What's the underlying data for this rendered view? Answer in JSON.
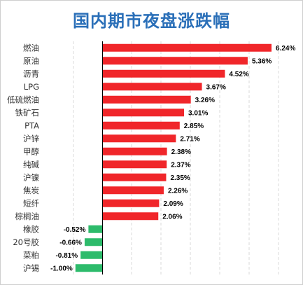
{
  "chart_data": {
    "type": "bar",
    "orientation": "horizontal",
    "title": "国内期市夜盘涨跌幅",
    "xlabel": "",
    "ylabel": "",
    "categories": [
      "燃油",
      "原油",
      "沥青",
      "LPG",
      "低硫燃油",
      "铁矿石",
      "PTA",
      "沪锌",
      "甲醇",
      "纯碱",
      "沪镍",
      "焦炭",
      "短纤",
      "棕榈油",
      "橡胶",
      "20号胶",
      "菜粕",
      "沪锡"
    ],
    "values": [
      6.24,
      5.36,
      4.52,
      3.67,
      3.26,
      3.01,
      2.85,
      2.71,
      2.38,
      2.37,
      2.35,
      2.26,
      2.09,
      2.06,
      -0.52,
      -0.66,
      -0.81,
      -1.0
    ],
    "value_labels": [
      "6.24%",
      "5.36%",
      "4.52%",
      "3.67%",
      "3.26%",
      "3.01%",
      "2.85%",
      "2.71%",
      "2.38%",
      "2.37%",
      "2.35%",
      "2.26%",
      "2.09%",
      "2.06%",
      "-0.52%",
      "-0.66%",
      "-0.81%",
      "-1.00%"
    ],
    "xlim": [
      -1.5,
      7.0
    ],
    "grid": "vertical-dashed",
    "legend": "none",
    "colors": {
      "positive": "#f0262a",
      "negative": "#2dbb6b"
    }
  }
}
